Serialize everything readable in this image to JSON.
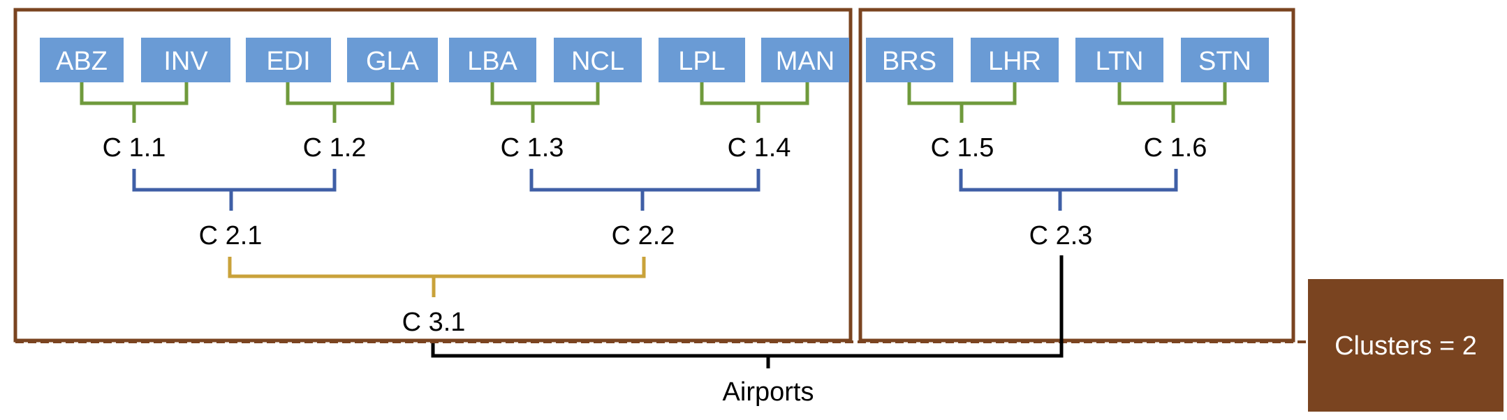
{
  "leaves": [
    "ABZ",
    "INV",
    "EDI",
    "GLA",
    "LBA",
    "NCL",
    "LPL",
    "MAN",
    "BRS",
    "LHR",
    "LTN",
    "STN"
  ],
  "level1": [
    "C 1.1",
    "C 1.2",
    "C 1.3",
    "C 1.4",
    "C 1.5",
    "C 1.6"
  ],
  "level2": [
    "C 2.1",
    "C 2.2",
    "C 2.3"
  ],
  "level3": [
    "C 3.1"
  ],
  "root": "Airports",
  "badge": "Clusters = 2",
  "colors": {
    "leaf_fill": "#6a9bd5",
    "level1_links": "#6f9a3c",
    "level2_links": "#3f5fa6",
    "level3_links": "#c9a23a",
    "root_links": "#000000",
    "cluster_border": "#7a4420",
    "badge_fill": "#7a4420"
  }
}
